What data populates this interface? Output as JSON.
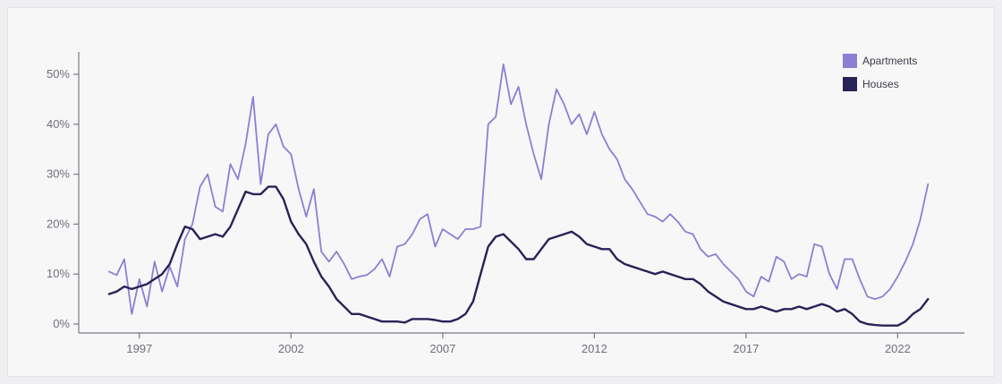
{
  "chart_data": {
    "type": "line",
    "title": "",
    "xlabel": "",
    "ylabel": "",
    "xlim": [
      1995.0,
      2024.2
    ],
    "ylim": [
      -1,
      53
    ],
    "x_ticks": [
      {
        "value": 1997,
        "label": "1997"
      },
      {
        "value": 2002,
        "label": "2002"
      },
      {
        "value": 2007,
        "label": "2007"
      },
      {
        "value": 2012,
        "label": "2012"
      },
      {
        "value": 2017,
        "label": "2017"
      },
      {
        "value": 2022,
        "label": "2022"
      }
    ],
    "y_ticks": [
      {
        "value": 0,
        "label": "0%"
      },
      {
        "value": 10,
        "label": "10%"
      },
      {
        "value": 20,
        "label": "20%"
      },
      {
        "value": 30,
        "label": "30%"
      },
      {
        "value": 40,
        "label": "40%"
      },
      {
        "value": 50,
        "label": "50%"
      }
    ],
    "grid": false,
    "legend_position": "top-right",
    "colors": {
      "apartments": "#8c7fd3",
      "houses": "#272357",
      "axis": "#7a7a86"
    },
    "series": [
      {
        "name": "Apartments",
        "color": "#8c7fd3",
        "points": [
          [
            1996.0,
            10.5
          ],
          [
            1996.25,
            9.8
          ],
          [
            1996.5,
            13.0
          ],
          [
            1996.75,
            2.0
          ],
          [
            1997.0,
            9.0
          ],
          [
            1997.25,
            3.5
          ],
          [
            1997.5,
            12.5
          ],
          [
            1997.75,
            6.5
          ],
          [
            1998.0,
            11.5
          ],
          [
            1998.25,
            7.5
          ],
          [
            1998.5,
            17.0
          ],
          [
            1998.75,
            20.0
          ],
          [
            1999.0,
            27.5
          ],
          [
            1999.25,
            30.0
          ],
          [
            1999.5,
            23.5
          ],
          [
            1999.75,
            22.5
          ],
          [
            2000.0,
            32.0
          ],
          [
            2000.25,
            29.0
          ],
          [
            2000.5,
            36.0
          ],
          [
            2000.75,
            45.5
          ],
          [
            2001.0,
            28.0
          ],
          [
            2001.25,
            38.0
          ],
          [
            2001.5,
            40.0
          ],
          [
            2001.75,
            35.5
          ],
          [
            2002.0,
            34.0
          ],
          [
            2002.25,
            27.0
          ],
          [
            2002.5,
            21.5
          ],
          [
            2002.75,
            27.0
          ],
          [
            2003.0,
            14.5
          ],
          [
            2003.25,
            12.5
          ],
          [
            2003.5,
            14.5
          ],
          [
            2003.75,
            12.0
          ],
          [
            2004.0,
            9.0
          ],
          [
            2004.25,
            9.5
          ],
          [
            2004.5,
            9.8
          ],
          [
            2004.75,
            11.0
          ],
          [
            2005.0,
            13.0
          ],
          [
            2005.25,
            9.5
          ],
          [
            2005.5,
            15.5
          ],
          [
            2005.75,
            16.0
          ],
          [
            2006.0,
            18.0
          ],
          [
            2006.25,
            21.0
          ],
          [
            2006.5,
            22.0
          ],
          [
            2006.75,
            15.5
          ],
          [
            2007.0,
            19.0
          ],
          [
            2007.25,
            18.0
          ],
          [
            2007.5,
            17.0
          ],
          [
            2007.75,
            19.0
          ],
          [
            2008.0,
            19.0
          ],
          [
            2008.25,
            19.5
          ],
          [
            2008.5,
            40.0
          ],
          [
            2008.75,
            41.5
          ],
          [
            2009.0,
            52.0
          ],
          [
            2009.25,
            44.0
          ],
          [
            2009.5,
            47.5
          ],
          [
            2009.75,
            40.0
          ],
          [
            2010.0,
            34.0
          ],
          [
            2010.25,
            29.0
          ],
          [
            2010.5,
            40.0
          ],
          [
            2010.75,
            47.0
          ],
          [
            2011.0,
            44.0
          ],
          [
            2011.25,
            40.0
          ],
          [
            2011.5,
            42.0
          ],
          [
            2011.75,
            38.0
          ],
          [
            2012.0,
            42.5
          ],
          [
            2012.25,
            38.0
          ],
          [
            2012.5,
            35.0
          ],
          [
            2012.75,
            33.0
          ],
          [
            2013.0,
            29.0
          ],
          [
            2013.25,
            27.0
          ],
          [
            2013.5,
            24.5
          ],
          [
            2013.75,
            22.0
          ],
          [
            2014.0,
            21.5
          ],
          [
            2014.25,
            20.5
          ],
          [
            2014.5,
            22.0
          ],
          [
            2014.75,
            20.5
          ],
          [
            2015.0,
            18.5
          ],
          [
            2015.25,
            18.0
          ],
          [
            2015.5,
            15.0
          ],
          [
            2015.75,
            13.5
          ],
          [
            2016.0,
            14.0
          ],
          [
            2016.25,
            12.0
          ],
          [
            2016.5,
            10.5
          ],
          [
            2016.75,
            9.0
          ],
          [
            2017.0,
            6.5
          ],
          [
            2017.25,
            5.5
          ],
          [
            2017.5,
            9.5
          ],
          [
            2017.75,
            8.5
          ],
          [
            2018.0,
            13.5
          ],
          [
            2018.25,
            12.5
          ],
          [
            2018.5,
            9.0
          ],
          [
            2018.75,
            10.0
          ],
          [
            2019.0,
            9.5
          ],
          [
            2019.25,
            16.0
          ],
          [
            2019.5,
            15.5
          ],
          [
            2019.75,
            10.0
          ],
          [
            2020.0,
            7.0
          ],
          [
            2020.25,
            13.0
          ],
          [
            2020.5,
            13.0
          ],
          [
            2020.75,
            9.0
          ],
          [
            2021.0,
            5.5
          ],
          [
            2021.25,
            5.0
          ],
          [
            2021.5,
            5.5
          ],
          [
            2021.75,
            7.0
          ],
          [
            2022.0,
            9.5
          ],
          [
            2022.25,
            12.5
          ],
          [
            2022.5,
            16.0
          ],
          [
            2022.75,
            21.0
          ],
          [
            2023.0,
            28.0
          ]
        ]
      },
      {
        "name": "Houses",
        "color": "#272357",
        "points": [
          [
            1996.0,
            6.0
          ],
          [
            1996.25,
            6.5
          ],
          [
            1996.5,
            7.5
          ],
          [
            1996.75,
            7.0
          ],
          [
            1997.0,
            7.5
          ],
          [
            1997.25,
            8.0
          ],
          [
            1997.5,
            9.0
          ],
          [
            1997.75,
            10.0
          ],
          [
            1998.0,
            12.0
          ],
          [
            1998.25,
            16.0
          ],
          [
            1998.5,
            19.5
          ],
          [
            1998.75,
            19.0
          ],
          [
            1999.0,
            17.0
          ],
          [
            1999.25,
            17.5
          ],
          [
            1999.5,
            18.0
          ],
          [
            1999.75,
            17.5
          ],
          [
            2000.0,
            19.5
          ],
          [
            2000.25,
            23.0
          ],
          [
            2000.5,
            26.5
          ],
          [
            2000.75,
            26.0
          ],
          [
            2001.0,
            26.0
          ],
          [
            2001.25,
            27.5
          ],
          [
            2001.5,
            27.5
          ],
          [
            2001.75,
            25.0
          ],
          [
            2002.0,
            20.5
          ],
          [
            2002.25,
            18.0
          ],
          [
            2002.5,
            16.0
          ],
          [
            2002.75,
            12.5
          ],
          [
            2003.0,
            9.5
          ],
          [
            2003.25,
            7.5
          ],
          [
            2003.5,
            5.0
          ],
          [
            2003.75,
            3.5
          ],
          [
            2004.0,
            2.0
          ],
          [
            2004.25,
            2.0
          ],
          [
            2004.5,
            1.5
          ],
          [
            2004.75,
            1.0
          ],
          [
            2005.0,
            0.5
          ],
          [
            2005.25,
            0.5
          ],
          [
            2005.5,
            0.5
          ],
          [
            2005.75,
            0.3
          ],
          [
            2006.0,
            1.0
          ],
          [
            2006.25,
            1.0
          ],
          [
            2006.5,
            1.0
          ],
          [
            2006.75,
            0.8
          ],
          [
            2007.0,
            0.5
          ],
          [
            2007.25,
            0.5
          ],
          [
            2007.5,
            1.0
          ],
          [
            2007.75,
            2.0
          ],
          [
            2008.0,
            4.5
          ],
          [
            2008.25,
            10.0
          ],
          [
            2008.5,
            15.5
          ],
          [
            2008.75,
            17.5
          ],
          [
            2009.0,
            18.0
          ],
          [
            2009.25,
            16.5
          ],
          [
            2009.5,
            15.0
          ],
          [
            2009.75,
            13.0
          ],
          [
            2010.0,
            13.0
          ],
          [
            2010.25,
            15.0
          ],
          [
            2010.5,
            17.0
          ],
          [
            2010.75,
            17.5
          ],
          [
            2011.0,
            18.0
          ],
          [
            2011.25,
            18.5
          ],
          [
            2011.5,
            17.5
          ],
          [
            2011.75,
            16.0
          ],
          [
            2012.0,
            15.5
          ],
          [
            2012.25,
            15.0
          ],
          [
            2012.5,
            15.0
          ],
          [
            2012.75,
            13.0
          ],
          [
            2013.0,
            12.0
          ],
          [
            2013.25,
            11.5
          ],
          [
            2013.5,
            11.0
          ],
          [
            2013.75,
            10.5
          ],
          [
            2014.0,
            10.0
          ],
          [
            2014.25,
            10.5
          ],
          [
            2014.5,
            10.0
          ],
          [
            2014.75,
            9.5
          ],
          [
            2015.0,
            9.0
          ],
          [
            2015.25,
            9.0
          ],
          [
            2015.5,
            8.0
          ],
          [
            2015.75,
            6.5
          ],
          [
            2016.0,
            5.5
          ],
          [
            2016.25,
            4.5
          ],
          [
            2016.5,
            4.0
          ],
          [
            2016.75,
            3.5
          ],
          [
            2017.0,
            3.0
          ],
          [
            2017.25,
            3.0
          ],
          [
            2017.5,
            3.5
          ],
          [
            2017.75,
            3.0
          ],
          [
            2018.0,
            2.5
          ],
          [
            2018.25,
            3.0
          ],
          [
            2018.5,
            3.0
          ],
          [
            2018.75,
            3.5
          ],
          [
            2019.0,
            3.0
          ],
          [
            2019.25,
            3.5
          ],
          [
            2019.5,
            4.0
          ],
          [
            2019.75,
            3.5
          ],
          [
            2020.0,
            2.5
          ],
          [
            2020.25,
            3.0
          ],
          [
            2020.5,
            2.0
          ],
          [
            2020.75,
            0.5
          ],
          [
            2021.0,
            0.0
          ],
          [
            2021.25,
            -0.2
          ],
          [
            2021.5,
            -0.3
          ],
          [
            2021.75,
            -0.3
          ],
          [
            2022.0,
            -0.3
          ],
          [
            2022.25,
            0.5
          ],
          [
            2022.5,
            2.0
          ],
          [
            2022.75,
            3.0
          ],
          [
            2023.0,
            5.0
          ]
        ]
      }
    ]
  }
}
